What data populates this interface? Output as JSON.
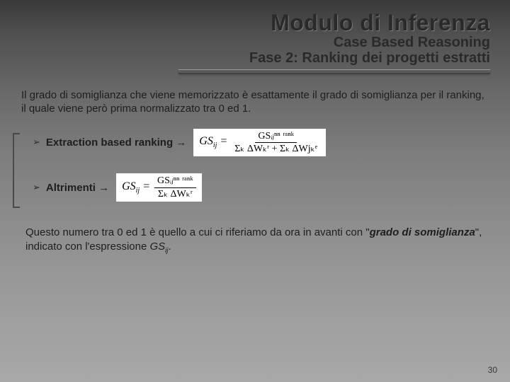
{
  "title": "Modulo di Inferenza",
  "subtitle1": "Case Based Reasoning",
  "subtitle2": "Fase 2: Ranking dei progetti estratti",
  "intro": "Il grado di somiglianza che viene memorizzato è esattamente il grado di somiglianza per il ranking, il quale viene però prima normalizzato tra 0 ed 1.",
  "bullets": {
    "b1_label": "Extraction based ranking",
    "b1_arrow": "→",
    "b1_formula_lhs": "GS",
    "b1_formula_lhs_sub": "ij",
    "b1_formula_num": "GSᵢⱼⁿⁿ ʳᵃⁿᵏ",
    "b1_formula_den": "Σₖ ΔWₖʳ + Σₖ ΔWjₖᵉ",
    "b2_label": "Altrimenti",
    "b2_arrow": "→",
    "b2_formula_lhs": "GS",
    "b2_formula_lhs_sub": "ij",
    "b2_formula_num": "GSᵢⱼⁿⁿ ʳᵃⁿᵏ",
    "b2_formula_den": "Σₖ ΔWₖʳ"
  },
  "footer_part1": "Questo numero tra 0 ed 1 è quello a cui ci riferiamo da ora in avanti con \"",
  "footer_em": "grado di somiglianza",
  "footer_part2": "\", indicato con l'espressione ",
  "footer_gs": "GS",
  "footer_gs_sub": "ij",
  "footer_part3": ".",
  "page_number": "30",
  "colors": {
    "bg_top": "#3a3a3a",
    "bg_bottom": "#a8a8a8",
    "text": "#1e1e1e",
    "formula_bg": "#ffffff",
    "hr": "#5a5a5a"
  }
}
